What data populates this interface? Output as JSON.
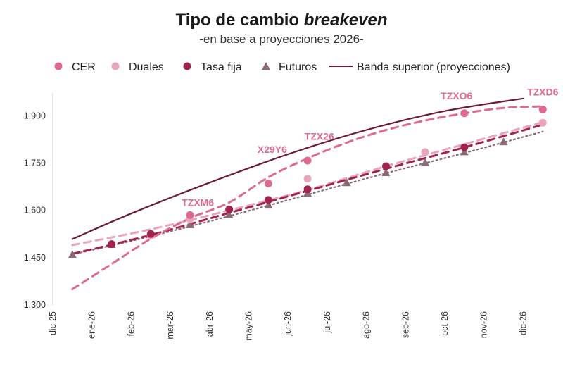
{
  "chart_data": {
    "type": "line",
    "title_prefix": "Tipo de cambio ",
    "title_emphasis": "breakeven",
    "subtitle": "-en base a proyecciones 2026-",
    "x_categories": [
      "dic-25",
      "ene-26",
      "feb-26",
      "mar-26",
      "abr-26",
      "may-26",
      "jun-26",
      "jul-26",
      "ago-26",
      "sep-26",
      "oct-26",
      "nov-26",
      "dic-26"
    ],
    "ylim": [
      1300,
      1950
    ],
    "y_ticks": [
      1300,
      1450,
      1600,
      1750,
      1900
    ],
    "y_tick_labels": [
      "1.300",
      "1.450",
      "1.600",
      "1.750",
      "1.900"
    ],
    "legend": {
      "cer": "CER",
      "duales": "Duales",
      "tasa_fija": "Tasa fija",
      "futuros": "Futuros",
      "banda": "Banda superior (proyecciones)"
    },
    "colors": {
      "cer": "#dc6b8d",
      "duales": "#e8a5bb",
      "tasa_fija": "#a3234f",
      "futuros": "#8a6b72",
      "banda": "#6e1a35",
      "axis": "#cccccc"
    },
    "series": [
      {
        "key": "banda",
        "name": "Banda superior (proyecciones)",
        "style": "solid",
        "points": [
          [
            0.5,
            1509
          ],
          [
            2,
            1590
          ],
          [
            4,
            1688
          ],
          [
            6,
            1778
          ],
          [
            8,
            1855
          ],
          [
            10,
            1915
          ],
          [
            12,
            1955
          ]
        ]
      },
      {
        "key": "cer",
        "name": "CER",
        "style": "dashed_points",
        "points": [
          [
            3.5,
            1585
          ],
          [
            5.5,
            1685
          ],
          [
            6.5,
            1758
          ],
          [
            10.5,
            1908
          ],
          [
            12.5,
            1920
          ]
        ]
      },
      {
        "key": "cer_trend",
        "name": "CER tendencia",
        "style": "dashed",
        "points": [
          [
            0.5,
            1350
          ],
          [
            1.5,
            1430
          ],
          [
            2.5,
            1510
          ],
          [
            3.5,
            1575
          ],
          [
            4.5,
            1625
          ],
          [
            5.5,
            1705
          ],
          [
            6.5,
            1765
          ],
          [
            7.5,
            1815
          ],
          [
            8.5,
            1855
          ],
          [
            9.5,
            1885
          ],
          [
            10.5,
            1908
          ],
          [
            11.5,
            1925
          ],
          [
            12.5,
            1930
          ]
        ]
      },
      {
        "key": "duales",
        "name": "Duales",
        "style": "dashed_points",
        "points": [
          [
            2.5,
            1520
          ],
          [
            3.5,
            1572
          ],
          [
            6.5,
            1700
          ],
          [
            9.5,
            1785
          ],
          [
            12.5,
            1878
          ]
        ]
      },
      {
        "key": "duales_trend",
        "name": "Duales tendencia",
        "style": "dashed",
        "points": [
          [
            0.5,
            1490
          ],
          [
            2.5,
            1540
          ],
          [
            4.5,
            1600
          ],
          [
            6.5,
            1665
          ],
          [
            8.5,
            1740
          ],
          [
            10.5,
            1810
          ],
          [
            12.5,
            1880
          ]
        ]
      },
      {
        "key": "tasa_fija",
        "name": "Tasa fija",
        "style": "dashed_points",
        "points": [
          [
            1.5,
            1493
          ],
          [
            2.5,
            1525
          ],
          [
            4.5,
            1603
          ],
          [
            5.5,
            1633
          ],
          [
            6.5,
            1667
          ],
          [
            8.5,
            1740
          ],
          [
            10.5,
            1800
          ]
        ]
      },
      {
        "key": "tasa_fija_trend",
        "name": "Tasa fija tendencia",
        "style": "dashed",
        "points": [
          [
            0.5,
            1462
          ],
          [
            2.5,
            1522
          ],
          [
            4.5,
            1592
          ],
          [
            6.5,
            1662
          ],
          [
            8.5,
            1732
          ],
          [
            10.5,
            1800
          ],
          [
            12.5,
            1872
          ]
        ]
      },
      {
        "key": "futuros",
        "name": "Futuros",
        "style": "dotted_points",
        "points": [
          [
            0.5,
            1460
          ],
          [
            1.5,
            1492
          ],
          [
            3.5,
            1555
          ],
          [
            4.5,
            1586
          ],
          [
            5.5,
            1617
          ],
          [
            6.5,
            1655
          ],
          [
            7.5,
            1688
          ],
          [
            8.5,
            1720
          ],
          [
            9.5,
            1752
          ],
          [
            10.5,
            1786
          ],
          [
            11.5,
            1818
          ]
        ]
      },
      {
        "key": "futuros_trend",
        "name": "Futuros tendencia",
        "style": "dotted",
        "points": [
          [
            0.5,
            1460
          ],
          [
            2.5,
            1518
          ],
          [
            4.5,
            1582
          ],
          [
            6.5,
            1650
          ],
          [
            8.5,
            1718
          ],
          [
            10.5,
            1782
          ],
          [
            12.5,
            1850
          ]
        ]
      }
    ],
    "annotations": [
      {
        "text": "TZXM6",
        "x": 3.7,
        "y": 1614
      },
      {
        "text": "X29Y6",
        "x": 5.6,
        "y": 1782
      },
      {
        "text": "TZX26",
        "x": 6.8,
        "y": 1824
      },
      {
        "text": "TZXO6",
        "x": 10.3,
        "y": 1952
      },
      {
        "text": "TZXD6",
        "x": 12.5,
        "y": 1964
      }
    ]
  }
}
